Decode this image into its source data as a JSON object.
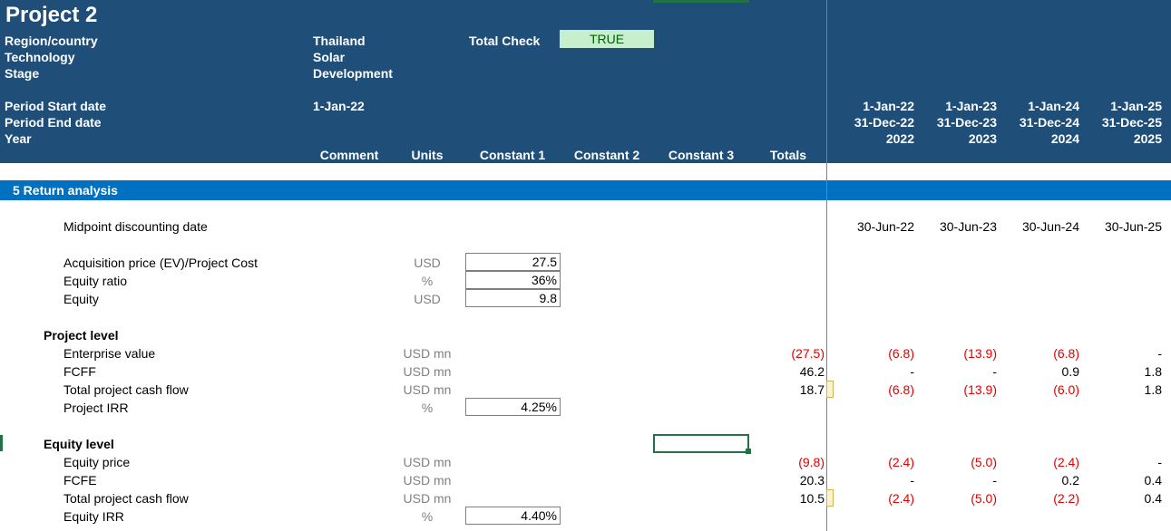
{
  "header": {
    "title": "Project 2",
    "labels": {
      "region": "Region/country",
      "technology": "Technology",
      "stage": "Stage",
      "period_start": "Period Start date",
      "period_end": "Period End date",
      "year": "Year"
    },
    "values": {
      "region": "Thailand",
      "technology": "Solar",
      "stage": "Development",
      "period_start": "1-Jan-22"
    },
    "total_check_label": "Total Check",
    "total_check_value": "TRUE",
    "columns": {
      "comment": "Comment",
      "units": "Units",
      "constant1": "Constant 1",
      "constant2": "Constant 2",
      "constant3": "Constant 3",
      "totals": "Totals"
    },
    "periods": [
      {
        "start": "1-Jan-22",
        "end": "31-Dec-22",
        "year": "2022"
      },
      {
        "start": "1-Jan-23",
        "end": "31-Dec-23",
        "year": "2023"
      },
      {
        "start": "1-Jan-24",
        "end": "31-Dec-24",
        "year": "2024"
      },
      {
        "start": "1-Jan-25",
        "end": "31-Dec-25",
        "year": "2025"
      }
    ]
  },
  "section": {
    "title": "5 Return analysis",
    "midpoint_label": "Midpoint discounting date",
    "midpoints": [
      "30-Jun-22",
      "30-Jun-23",
      "30-Jun-24",
      "30-Jun-25"
    ],
    "inputs": [
      {
        "label": "Acquisition price (EV)/Project Cost",
        "unit": "USD",
        "value": "27.5"
      },
      {
        "label": "Equity ratio",
        "unit": "%",
        "value": "36%"
      },
      {
        "label": "Equity",
        "unit": "USD",
        "value": "9.8"
      }
    ],
    "project_level": {
      "title": "Project level",
      "rows": [
        {
          "label": "Enterprise value",
          "unit": "USD mn",
          "total": "(27.5)",
          "vals": [
            "(6.8)",
            "(13.9)",
            "(6.8)",
            "-"
          ]
        },
        {
          "label": "FCFF",
          "unit": "USD mn",
          "total": "46.2",
          "vals": [
            "-",
            "-",
            "0.9",
            "1.8"
          ]
        },
        {
          "label": "Total project cash flow",
          "unit": "USD mn",
          "total": "18.7",
          "vals": [
            "(6.8)",
            "(13.9)",
            "(6.0)",
            "1.8"
          ]
        }
      ],
      "irr_label": "Project IRR",
      "irr_unit": "%",
      "irr_value": "4.25%"
    },
    "equity_level": {
      "title": "Equity level",
      "rows": [
        {
          "label": "Equity price",
          "unit": "USD mn",
          "total": "(9.8)",
          "vals": [
            "(2.4)",
            "(5.0)",
            "(2.4)",
            "-"
          ]
        },
        {
          "label": "FCFE",
          "unit": "USD mn",
          "total": "20.3",
          "vals": [
            "-",
            "-",
            "0.2",
            "0.4"
          ]
        },
        {
          "label": "Total project cash flow",
          "unit": "USD mn",
          "total": "10.5",
          "vals": [
            "(2.4)",
            "(5.0)",
            "(2.2)",
            "0.4"
          ]
        }
      ],
      "irr_label": "Equity IRR",
      "irr_unit": "%",
      "irr_value": "4.40%"
    }
  },
  "colors": {
    "header_bg": "#1f4e79",
    "section_bg": "#0070c0",
    "true_bg": "#c6efce",
    "negative": "#e00000",
    "selection": "#217346"
  }
}
